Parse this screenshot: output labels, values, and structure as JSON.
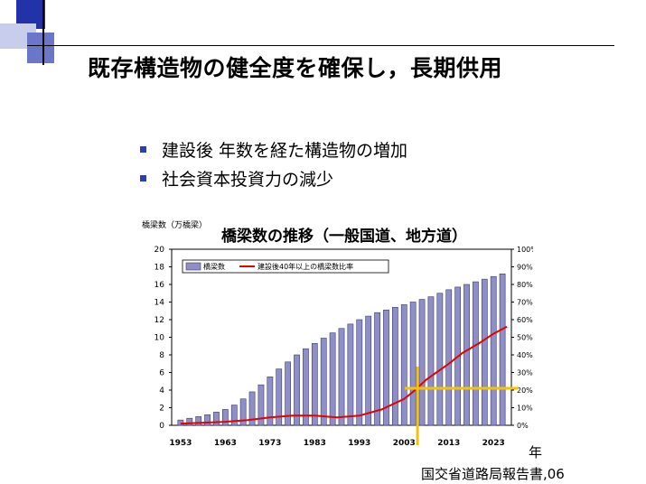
{
  "slide": {
    "title": "既存構造物の健全度を確保し，長期供用",
    "bullets": [
      {
        "text": "建設後 年数を経た構造物の増加"
      },
      {
        "text": "社会資本投資力の減少"
      }
    ]
  },
  "colors": {
    "bullet": "#2b3fb0",
    "bar_fill": "#8f8fc8",
    "bar_stroke": "#3a3a6e",
    "line": "#e60000",
    "highlight": "#f5c400",
    "deco_blue": "#2233aa",
    "deco_light": "#9aa6d8"
  },
  "chart_data": {
    "type": "bar",
    "title": "橋梁数の推移（一般国道、地方道）",
    "y_axis_label": "橋梁数（万橋梁）",
    "ylim": [
      0,
      20
    ],
    "y_ticks": [
      "0",
      "2",
      "4",
      "6",
      "8",
      "10",
      "12",
      "14",
      "16",
      "18",
      "20"
    ],
    "y2lim": [
      0,
      100
    ],
    "y2_ticks": [
      "0%",
      "10%",
      "20%",
      "30%",
      "40%",
      "50%",
      "60%",
      "70%",
      "80%",
      "90%",
      "100%"
    ],
    "x_ticks": [
      "1953",
      "1963",
      "1973",
      "1983",
      "1993",
      "2003",
      "2013",
      "2023"
    ],
    "legend_position": "top-left",
    "grid": false,
    "series": [
      {
        "name": "橋梁数",
        "kind": "bar",
        "axis": "left",
        "x": [
          1953,
          1955,
          1957,
          1959,
          1961,
          1963,
          1965,
          1967,
          1969,
          1971,
          1973,
          1975,
          1977,
          1979,
          1981,
          1983,
          1985,
          1987,
          1989,
          1991,
          1993,
          1995,
          1997,
          1999,
          2001,
          2003,
          2005,
          2007,
          2009,
          2011,
          2013,
          2015,
          2017,
          2019,
          2021,
          2023,
          2025
        ],
        "values": [
          0.6,
          0.8,
          1.0,
          1.2,
          1.5,
          1.8,
          2.3,
          3.0,
          3.8,
          4.6,
          5.5,
          6.4,
          7.2,
          8.0,
          8.7,
          9.3,
          9.9,
          10.5,
          11.0,
          11.5,
          12.0,
          12.4,
          12.8,
          13.1,
          13.4,
          13.7,
          14.0,
          14.3,
          14.6,
          15.0,
          15.4,
          15.7,
          16.0,
          16.3,
          16.6,
          16.9,
          17.2
        ]
      },
      {
        "name": "建設後40年以上の橋梁数比率",
        "kind": "line",
        "axis": "right",
        "x": [
          1953,
          1958,
          1963,
          1968,
          1973,
          1978,
          1983,
          1988,
          1993,
          1998,
          2003,
          2005,
          2008,
          2013,
          2016,
          2020,
          2023,
          2026
        ],
        "values": [
          1,
          1.5,
          2,
          3,
          4.5,
          5.5,
          5.5,
          4.5,
          5.5,
          9,
          15,
          19,
          26,
          35,
          41,
          47,
          52,
          56
        ]
      }
    ],
    "annotations": {
      "vertical_marker_year": 2006,
      "horizontal_marker_percent": 21
    }
  },
  "source": {
    "year_label": "年",
    "reference": "国交省道路局報告書,06"
  }
}
